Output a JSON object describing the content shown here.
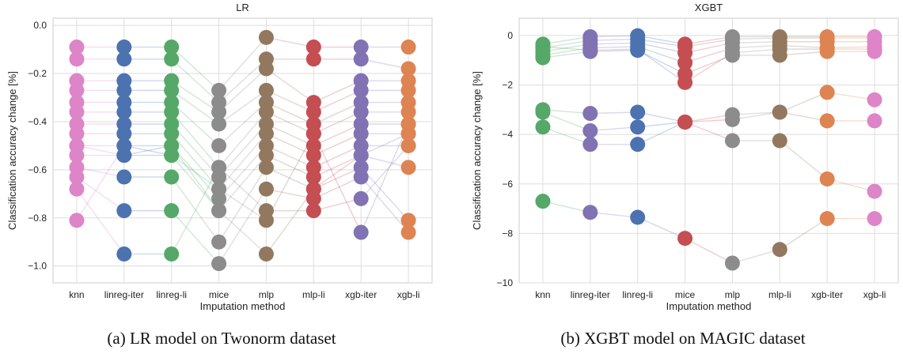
{
  "chart_data": [
    {
      "type": "scatter",
      "title": "LR",
      "xlabel": "Imputation method",
      "ylabel": "Classification accuracy change [%]",
      "categories": [
        "knn",
        "linreg-iter",
        "linreg-li",
        "mice",
        "mlp",
        "mlp-li",
        "xgb-iter",
        "xgb-li"
      ],
      "ylim": [
        -1.07,
        0.03
      ],
      "yticks": [
        0.0,
        -0.2,
        -0.4,
        -0.6,
        -0.8,
        -1.0
      ],
      "ytick_labels": [
        "0.0",
        "−0.2",
        "−0.4",
        "−0.6",
        "−0.8",
        "−1.0"
      ],
      "grid": true,
      "colors": [
        "#dd85c8",
        "#4c72b0",
        "#55a868",
        "#8c8c8c",
        "#937860",
        "#c44e52",
        "#8172b3",
        "#dd8452"
      ],
      "series": [
        {
          "values": [
            -0.09,
            -0.09,
            -0.09,
            -0.27,
            -0.05,
            -0.09,
            -0.09,
            -0.09
          ]
        },
        {
          "values": [
            -0.14,
            -0.14,
            -0.14,
            -0.32,
            -0.14,
            -0.14,
            -0.14,
            -0.18
          ]
        },
        {
          "values": [
            -0.23,
            -0.23,
            -0.23,
            -0.36,
            -0.18,
            -0.32,
            -0.23,
            -0.23
          ]
        },
        {
          "values": [
            -0.27,
            -0.27,
            -0.27,
            -0.41,
            -0.27,
            -0.36,
            -0.27,
            -0.27
          ]
        },
        {
          "values": [
            -0.32,
            -0.32,
            -0.32,
            -0.5,
            -0.32,
            -0.41,
            -0.32,
            -0.32
          ]
        },
        {
          "values": [
            -0.36,
            -0.36,
            -0.36,
            -0.59,
            -0.36,
            -0.45,
            -0.36,
            -0.36
          ]
        },
        {
          "values": [
            -0.41,
            -0.41,
            -0.41,
            -0.63,
            -0.41,
            -0.5,
            -0.41,
            -0.41
          ]
        },
        {
          "values": [
            -0.45,
            -0.45,
            -0.45,
            -0.68,
            -0.45,
            -0.54,
            -0.45,
            -0.45
          ]
        },
        {
          "values": [
            -0.5,
            -0.5,
            -0.5,
            -0.72,
            -0.5,
            -0.59,
            -0.5,
            -0.5
          ]
        },
        {
          "values": [
            -0.54,
            -0.54,
            -0.54,
            -0.77,
            -0.54,
            -0.63,
            -0.54,
            -0.59
          ]
        },
        {
          "values": [
            -0.59,
            -0.63,
            -0.63,
            -0.9,
            -0.59,
            -0.68,
            -0.59,
            -0.81
          ]
        },
        {
          "values": [
            -0.63,
            -0.77,
            -0.77,
            -0.99,
            -0.68,
            -0.72,
            -0.63,
            -0.86
          ]
        },
        {
          "values": [
            -0.68,
            -0.95,
            -0.95,
            -0.59,
            -0.77,
            -0.77,
            -0.72,
            -0.5
          ]
        },
        {
          "values": [
            -0.81,
            -0.5,
            -0.54,
            -0.68,
            -0.81,
            -0.45,
            -0.86,
            -0.41
          ]
        },
        {
          "values": [
            -0.5,
            -0.54,
            -0.5,
            -0.77,
            -0.95,
            -0.68,
            -0.54,
            -0.45
          ]
        }
      ]
    },
    {
      "type": "scatter",
      "title": "XGBT",
      "xlabel": "Imputation method",
      "ylabel": "Classification accuracy change [%]",
      "categories": [
        "knn",
        "linreg-iter",
        "linreg-li",
        "mice",
        "mlp",
        "mlp-li",
        "xgb-iter",
        "xgb-li"
      ],
      "ylim": [
        -10,
        0.7
      ],
      "yticks": [
        0,
        -2,
        -4,
        -6,
        -8,
        -10
      ],
      "ytick_labels": [
        "0",
        "−2",
        "−4",
        "−6",
        "−8",
        "−10"
      ],
      "grid": true,
      "colors": [
        "#55a868",
        "#8172b3",
        "#4c72b0",
        "#c44e52",
        "#8c8c8c",
        "#937860",
        "#dd8452",
        "#dd85c8"
      ],
      "series": [
        {
          "values": [
            -0.35,
            -0.05,
            -0.01,
            -0.35,
            -0.05,
            -0.05,
            -0.05,
            -0.05
          ]
        },
        {
          "values": [
            -0.5,
            -0.2,
            -0.15,
            -0.45,
            -0.15,
            -0.1,
            -0.1,
            -0.1
          ]
        },
        {
          "values": [
            -0.65,
            -0.35,
            -0.3,
            -0.7,
            -0.3,
            -0.25,
            -0.25,
            -0.25
          ]
        },
        {
          "values": [
            -0.8,
            -0.5,
            -0.45,
            -1.1,
            -0.5,
            -0.4,
            -0.5,
            -0.45
          ]
        },
        {
          "values": [
            -0.9,
            -0.65,
            -0.6,
            -1.55,
            -0.8,
            -0.8,
            -0.65,
            -0.65
          ]
        },
        {
          "values": [
            -0.45,
            -0.6,
            -0.55,
            -1.9,
            -0.7,
            -0.55,
            -0.55,
            -0.55
          ]
        },
        {
          "values": [
            -3.0,
            -3.15,
            -3.1,
            -3.5,
            -3.2,
            -3.1,
            -2.3,
            -2.6
          ]
        },
        {
          "values": [
            -3.1,
            -3.85,
            -3.7,
            -3.5,
            -3.4,
            -3.1,
            -3.45,
            -3.45
          ]
        },
        {
          "values": [
            -3.7,
            -4.4,
            -4.4,
            -3.5,
            -4.25,
            -4.25,
            -5.8,
            -6.3
          ]
        },
        {
          "values": [
            -6.7,
            -7.15,
            -7.35,
            -8.2,
            -9.2,
            -8.65,
            -7.4,
            -7.4
          ]
        }
      ]
    }
  ],
  "captions": {
    "a": "(a) LR model on Twonorm dataset",
    "b": "(b) XGBT model on MAGIC dataset"
  }
}
